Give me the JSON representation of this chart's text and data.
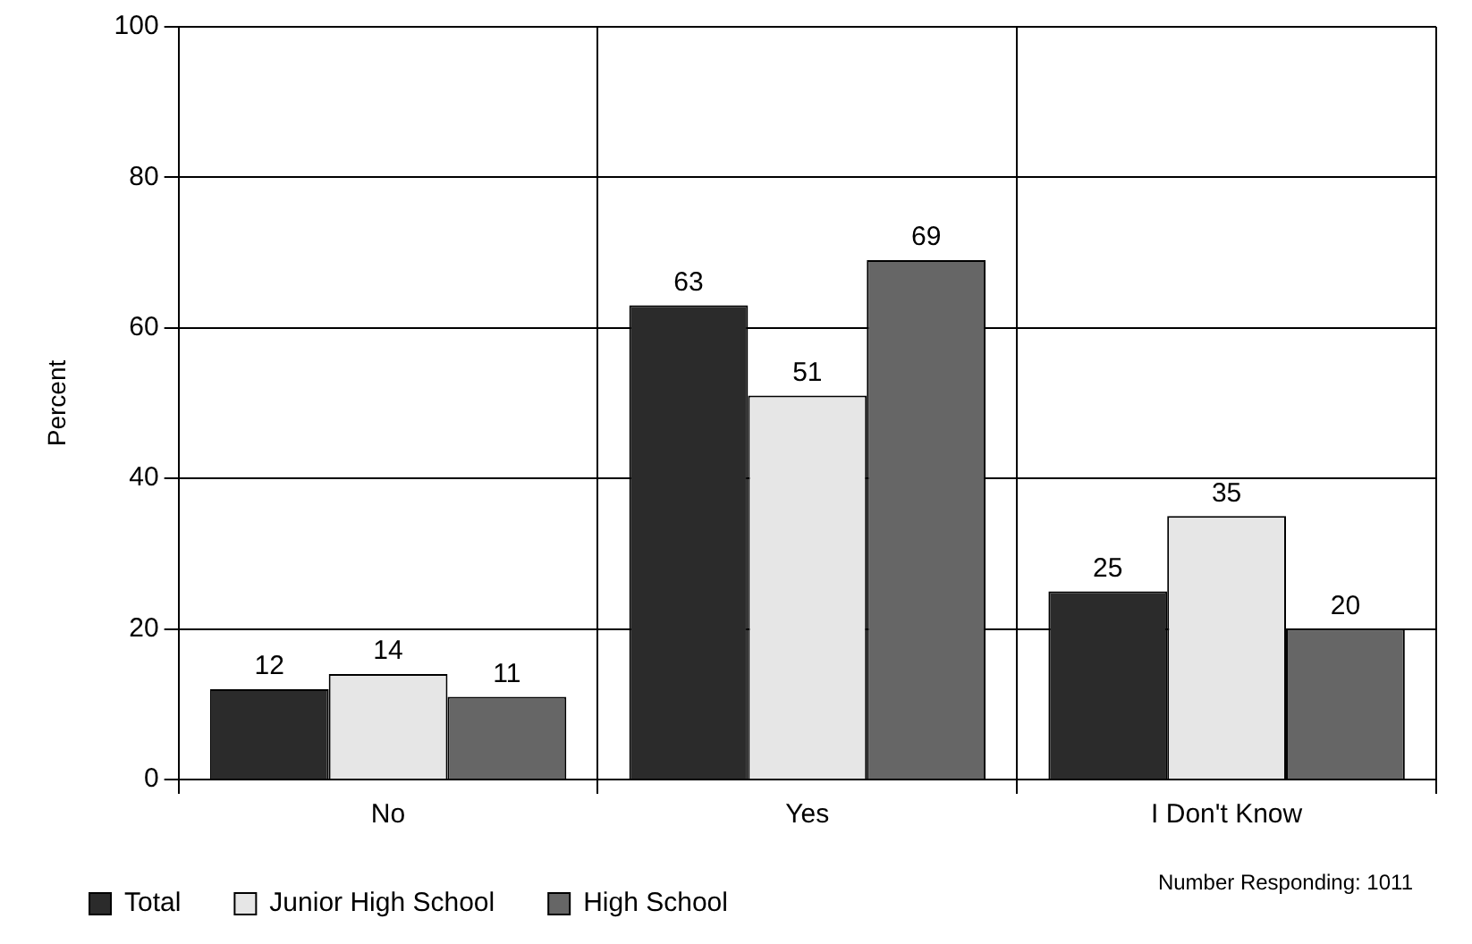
{
  "chart_data": {
    "type": "bar",
    "ylabel": "Percent",
    "categories": [
      "No",
      "Yes",
      "I Don't Know"
    ],
    "series": [
      {
        "name": "Total",
        "color": "#2b2b2b",
        "values": [
          12,
          63,
          25
        ]
      },
      {
        "name": "Junior High School",
        "color": "#e6e6e6",
        "values": [
          14,
          51,
          35
        ]
      },
      {
        "name": "High School",
        "color": "#666666",
        "values": [
          11,
          69,
          20
        ]
      }
    ],
    "ylim": [
      0,
      100
    ],
    "yticks": [
      0,
      20,
      40,
      60,
      80,
      100
    ],
    "grid": true,
    "legend": "bottom left",
    "data_labels": true,
    "annotations": [
      "Number Responding: 1011"
    ]
  }
}
